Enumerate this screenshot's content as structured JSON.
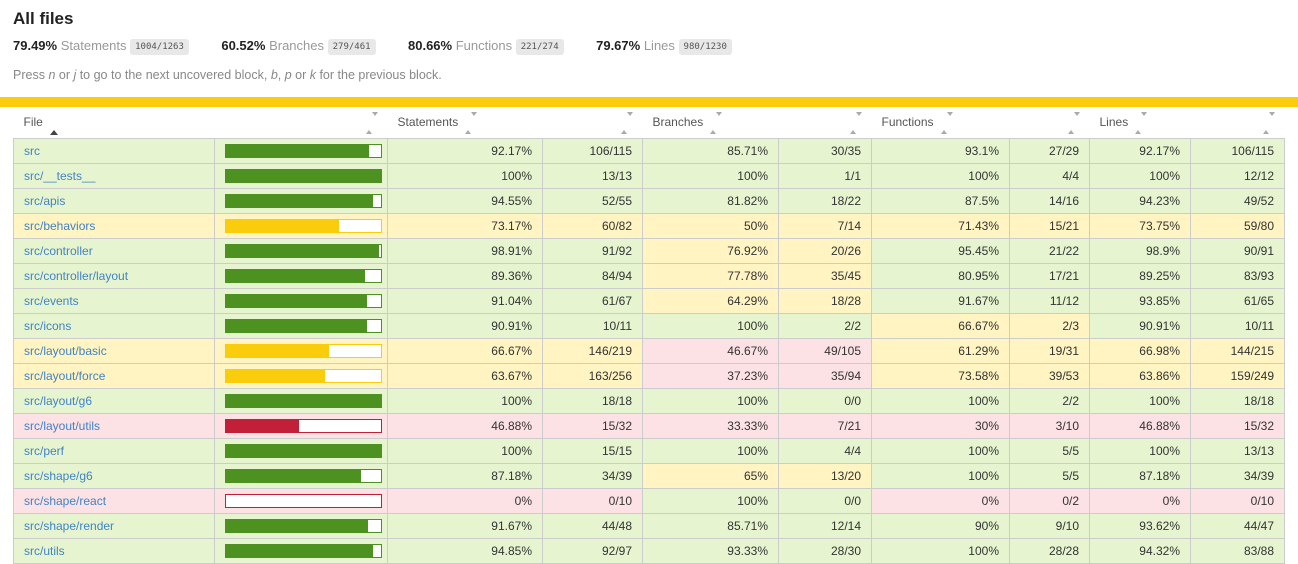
{
  "title": "All files",
  "summary": [
    {
      "pct": "79.49%",
      "label": "Statements",
      "fraction": "1004/1263"
    },
    {
      "pct": "60.52%",
      "label": "Branches",
      "fraction": "279/461"
    },
    {
      "pct": "80.66%",
      "label": "Functions",
      "fraction": "221/274"
    },
    {
      "pct": "79.67%",
      "label": "Lines",
      "fraction": "980/1230"
    }
  ],
  "hint": {
    "p1": "Press ",
    "k1": "n",
    "p2": " or ",
    "k2": "j",
    "p3": " to go to the next uncovered block, ",
    "k3": "b",
    "p4": ", ",
    "k4": "p",
    "p5": " or ",
    "k5": "k",
    "p6": " for the previous block."
  },
  "overall_level": "medium",
  "colors": {
    "status_line": "#f9cd0c",
    "high_bg": "#e6f5d0",
    "medium_bg": "#fff4c2",
    "low_bg": "#fce1e5",
    "high_fill": "#4d9221",
    "medium_fill": "#f9cd0c",
    "low_fill": "#c21f39",
    "link": "#4183c4",
    "fraction_badge_bg": "#e8e8e8"
  },
  "table": {
    "headers": {
      "file": "File",
      "statements": "Statements",
      "branches": "Branches",
      "functions": "Functions",
      "lines": "Lines"
    },
    "sorted_by": "file-ascending",
    "rows": [
      {
        "file": "src",
        "level": "high",
        "bar": 92.17,
        "statements": {
          "pct": "92.17%",
          "num": "106/115",
          "level": "high"
        },
        "branches": {
          "pct": "85.71%",
          "num": "30/35",
          "level": "high"
        },
        "functions": {
          "pct": "93.1%",
          "num": "27/29",
          "level": "high"
        },
        "lines": {
          "pct": "92.17%",
          "num": "106/115",
          "level": "high"
        }
      },
      {
        "file": "src/__tests__",
        "level": "high",
        "bar": 100,
        "statements": {
          "pct": "100%",
          "num": "13/13",
          "level": "high"
        },
        "branches": {
          "pct": "100%",
          "num": "1/1",
          "level": "high"
        },
        "functions": {
          "pct": "100%",
          "num": "4/4",
          "level": "high"
        },
        "lines": {
          "pct": "100%",
          "num": "12/12",
          "level": "high"
        }
      },
      {
        "file": "src/apis",
        "level": "high",
        "bar": 94.55,
        "statements": {
          "pct": "94.55%",
          "num": "52/55",
          "level": "high"
        },
        "branches": {
          "pct": "81.82%",
          "num": "18/22",
          "level": "high"
        },
        "functions": {
          "pct": "87.5%",
          "num": "14/16",
          "level": "high"
        },
        "lines": {
          "pct": "94.23%",
          "num": "49/52",
          "level": "high"
        }
      },
      {
        "file": "src/behaviors",
        "level": "medium",
        "bar": 73.17,
        "statements": {
          "pct": "73.17%",
          "num": "60/82",
          "level": "medium"
        },
        "branches": {
          "pct": "50%",
          "num": "7/14",
          "level": "medium"
        },
        "functions": {
          "pct": "71.43%",
          "num": "15/21",
          "level": "medium"
        },
        "lines": {
          "pct": "73.75%",
          "num": "59/80",
          "level": "medium"
        }
      },
      {
        "file": "src/controller",
        "level": "high",
        "bar": 98.91,
        "statements": {
          "pct": "98.91%",
          "num": "91/92",
          "level": "high"
        },
        "branches": {
          "pct": "76.92%",
          "num": "20/26",
          "level": "medium"
        },
        "functions": {
          "pct": "95.45%",
          "num": "21/22",
          "level": "high"
        },
        "lines": {
          "pct": "98.9%",
          "num": "90/91",
          "level": "high"
        }
      },
      {
        "file": "src/controller/layout",
        "level": "high",
        "bar": 89.36,
        "statements": {
          "pct": "89.36%",
          "num": "84/94",
          "level": "high"
        },
        "branches": {
          "pct": "77.78%",
          "num": "35/45",
          "level": "medium"
        },
        "functions": {
          "pct": "80.95%",
          "num": "17/21",
          "level": "high"
        },
        "lines": {
          "pct": "89.25%",
          "num": "83/93",
          "level": "high"
        }
      },
      {
        "file": "src/events",
        "level": "high",
        "bar": 91.04,
        "statements": {
          "pct": "91.04%",
          "num": "61/67",
          "level": "high"
        },
        "branches": {
          "pct": "64.29%",
          "num": "18/28",
          "level": "medium"
        },
        "functions": {
          "pct": "91.67%",
          "num": "11/12",
          "level": "high"
        },
        "lines": {
          "pct": "93.85%",
          "num": "61/65",
          "level": "high"
        }
      },
      {
        "file": "src/icons",
        "level": "high",
        "bar": 90.91,
        "statements": {
          "pct": "90.91%",
          "num": "10/11",
          "level": "high"
        },
        "branches": {
          "pct": "100%",
          "num": "2/2",
          "level": "high"
        },
        "functions": {
          "pct": "66.67%",
          "num": "2/3",
          "level": "medium"
        },
        "lines": {
          "pct": "90.91%",
          "num": "10/11",
          "level": "high"
        }
      },
      {
        "file": "src/layout/basic",
        "level": "medium",
        "bar": 66.67,
        "statements": {
          "pct": "66.67%",
          "num": "146/219",
          "level": "medium"
        },
        "branches": {
          "pct": "46.67%",
          "num": "49/105",
          "level": "low"
        },
        "functions": {
          "pct": "61.29%",
          "num": "19/31",
          "level": "medium"
        },
        "lines": {
          "pct": "66.98%",
          "num": "144/215",
          "level": "medium"
        }
      },
      {
        "file": "src/layout/force",
        "level": "medium",
        "bar": 63.67,
        "statements": {
          "pct": "63.67%",
          "num": "163/256",
          "level": "medium"
        },
        "branches": {
          "pct": "37.23%",
          "num": "35/94",
          "level": "low"
        },
        "functions": {
          "pct": "73.58%",
          "num": "39/53",
          "level": "medium"
        },
        "lines": {
          "pct": "63.86%",
          "num": "159/249",
          "level": "medium"
        }
      },
      {
        "file": "src/layout/g6",
        "level": "high",
        "bar": 100,
        "statements": {
          "pct": "100%",
          "num": "18/18",
          "level": "high"
        },
        "branches": {
          "pct": "100%",
          "num": "0/0",
          "level": "high"
        },
        "functions": {
          "pct": "100%",
          "num": "2/2",
          "level": "high"
        },
        "lines": {
          "pct": "100%",
          "num": "18/18",
          "level": "high"
        }
      },
      {
        "file": "src/layout/utils",
        "level": "low",
        "bar": 46.88,
        "statements": {
          "pct": "46.88%",
          "num": "15/32",
          "level": "low"
        },
        "branches": {
          "pct": "33.33%",
          "num": "7/21",
          "level": "low"
        },
        "functions": {
          "pct": "30%",
          "num": "3/10",
          "level": "low"
        },
        "lines": {
          "pct": "46.88%",
          "num": "15/32",
          "level": "low"
        }
      },
      {
        "file": "src/perf",
        "level": "high",
        "bar": 100,
        "statements": {
          "pct": "100%",
          "num": "15/15",
          "level": "high"
        },
        "branches": {
          "pct": "100%",
          "num": "4/4",
          "level": "high"
        },
        "functions": {
          "pct": "100%",
          "num": "5/5",
          "level": "high"
        },
        "lines": {
          "pct": "100%",
          "num": "13/13",
          "level": "high"
        }
      },
      {
        "file": "src/shape/g6",
        "level": "high",
        "bar": 87.18,
        "statements": {
          "pct": "87.18%",
          "num": "34/39",
          "level": "high"
        },
        "branches": {
          "pct": "65%",
          "num": "13/20",
          "level": "medium"
        },
        "functions": {
          "pct": "100%",
          "num": "5/5",
          "level": "high"
        },
        "lines": {
          "pct": "87.18%",
          "num": "34/39",
          "level": "high"
        }
      },
      {
        "file": "src/shape/react",
        "level": "low",
        "bar": 0,
        "statements": {
          "pct": "0%",
          "num": "0/10",
          "level": "low"
        },
        "branches": {
          "pct": "100%",
          "num": "0/0",
          "level": "high"
        },
        "functions": {
          "pct": "0%",
          "num": "0/2",
          "level": "low"
        },
        "lines": {
          "pct": "0%",
          "num": "0/10",
          "level": "low"
        }
      },
      {
        "file": "src/shape/render",
        "level": "high",
        "bar": 91.67,
        "statements": {
          "pct": "91.67%",
          "num": "44/48",
          "level": "high"
        },
        "branches": {
          "pct": "85.71%",
          "num": "12/14",
          "level": "high"
        },
        "functions": {
          "pct": "90%",
          "num": "9/10",
          "level": "high"
        },
        "lines": {
          "pct": "93.62%",
          "num": "44/47",
          "level": "high"
        }
      },
      {
        "file": "src/utils",
        "level": "high",
        "bar": 94.85,
        "statements": {
          "pct": "94.85%",
          "num": "92/97",
          "level": "high"
        },
        "branches": {
          "pct": "93.33%",
          "num": "28/30",
          "level": "high"
        },
        "functions": {
          "pct": "100%",
          "num": "28/28",
          "level": "high"
        },
        "lines": {
          "pct": "94.32%",
          "num": "83/88",
          "level": "high"
        }
      }
    ]
  }
}
